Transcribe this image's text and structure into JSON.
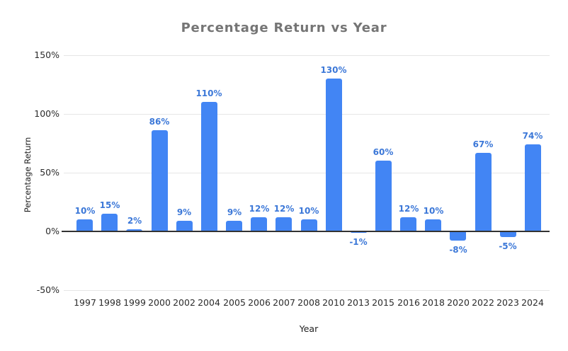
{
  "page": {
    "background": "#ffffff"
  },
  "chart_data": {
    "type": "bar",
    "title": "Percentage Return vs Year",
    "xlabel": "Year",
    "ylabel": "Percentage Return",
    "categories": [
      "1997",
      "1998",
      "1999",
      "2000",
      "2002",
      "2004",
      "2005",
      "2006",
      "2007",
      "2008",
      "2010",
      "2013",
      "2015",
      "2016",
      "2018",
      "2020",
      "2022",
      "2023",
      "2024"
    ],
    "values": [
      10,
      15,
      2,
      86,
      9,
      110,
      9,
      12,
      12,
      10,
      130,
      -1,
      60,
      12,
      10,
      -8,
      67,
      -5,
      74
    ],
    "value_labels": [
      "10%",
      "15%",
      "2%",
      "86%",
      "9%",
      "110%",
      "9%",
      "12%",
      "12%",
      "10%",
      "130%",
      "-1%",
      "60%",
      "12%",
      "10%",
      "-8%",
      "67%",
      "-5%",
      "74%"
    ],
    "y_ticks": [
      {
        "value": 150,
        "label": "150%"
      },
      {
        "value": 100,
        "label": "100%"
      },
      {
        "value": 50,
        "label": "50%"
      },
      {
        "value": 0,
        "label": "0%"
      },
      {
        "value": -50,
        "label": "-50%"
      }
    ],
    "ylim": [
      -50,
      150
    ],
    "grid": true,
    "legend_position": "none",
    "colors": {
      "bar": "#4285f4",
      "value_label": "#3c78d8",
      "gridline": "#e6e6e6",
      "zero_axis": "#333333",
      "title": "#757575",
      "tick_label": "#2b2b2b",
      "axis_title": "#1f1f1f"
    }
  }
}
